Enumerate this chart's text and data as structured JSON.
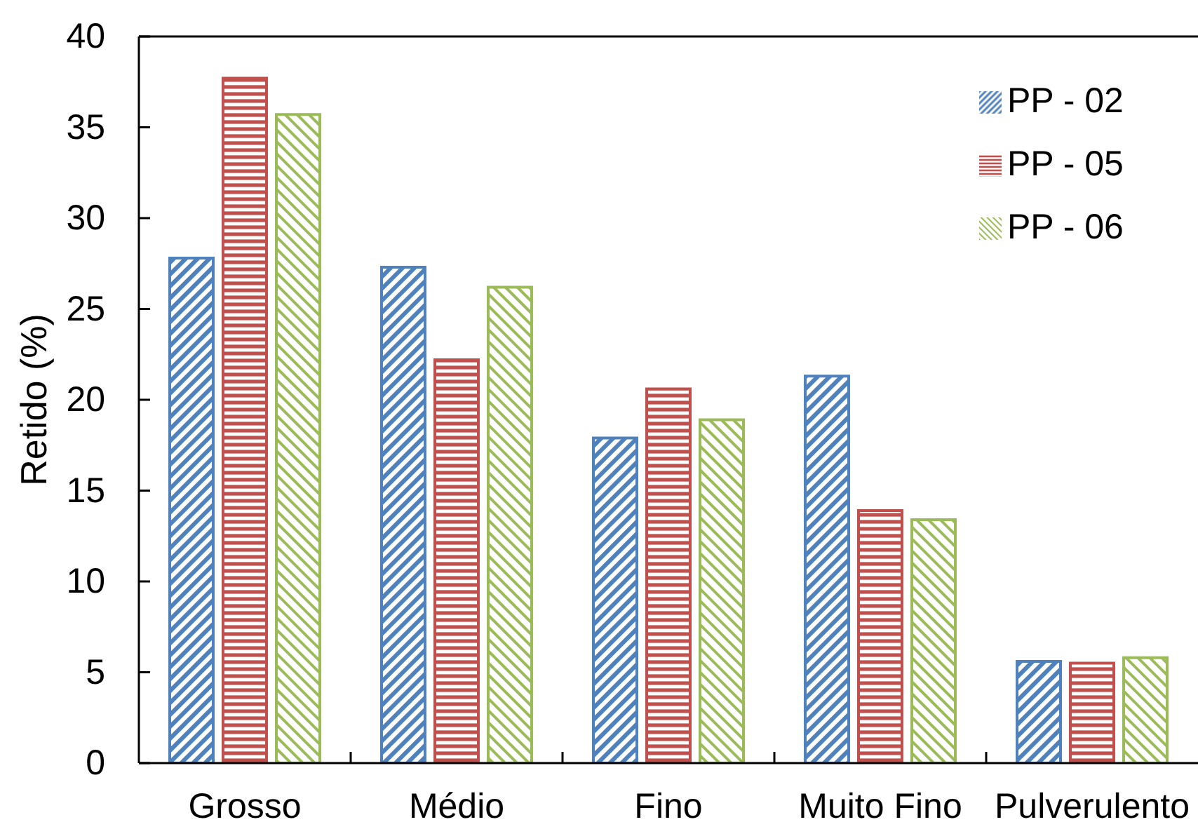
{
  "chart_data": {
    "type": "bar",
    "ylabel": "Retido (%)",
    "categories": [
      "Grosso",
      "Médio",
      "Fino",
      "Muito Fino",
      "Pulverulento"
    ],
    "series": [
      {
        "name": "PP - 02",
        "color": "#4f81bd",
        "values": [
          27.8,
          27.3,
          17.9,
          21.3,
          5.6
        ]
      },
      {
        "name": "PP - 05",
        "color": "#c0504d",
        "values": [
          37.7,
          22.2,
          20.6,
          13.9,
          5.5
        ]
      },
      {
        "name": "PP - 06",
        "color": "#9bbb59",
        "values": [
          35.7,
          26.2,
          18.9,
          13.4,
          5.8
        ]
      }
    ],
    "ylim": [
      0,
      40
    ],
    "yticks": [
      0,
      5,
      10,
      15,
      20,
      25,
      30,
      35,
      40
    ],
    "grid": false,
    "legend": "top right"
  }
}
